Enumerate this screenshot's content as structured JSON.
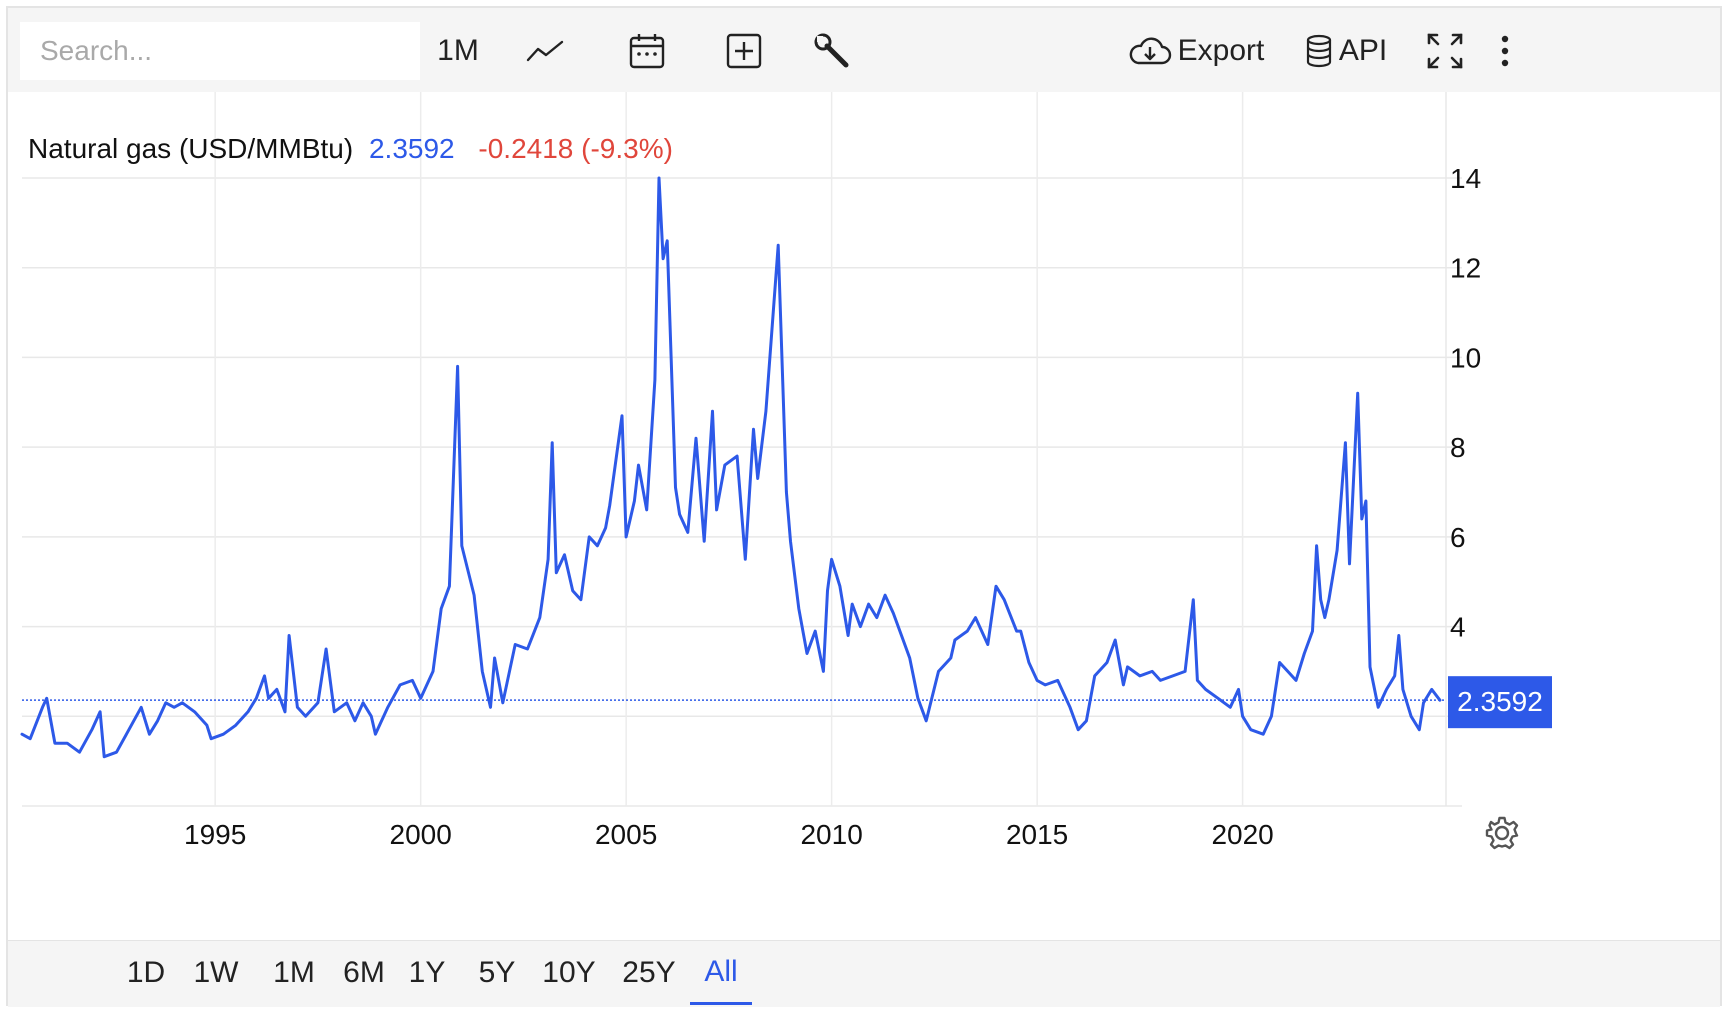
{
  "toolbar": {
    "search_placeholder": "Search...",
    "interval_label": "1M",
    "export_label": "Export",
    "api_label": "API",
    "icons": [
      "line-chart-icon",
      "calendar-icon",
      "add-box-icon",
      "wrench-icon",
      "cloud-download-icon",
      "database-icon",
      "fullscreen-icon",
      "more-vert-icon"
    ]
  },
  "legend": {
    "name": "Natural gas (USD/MMBtu)",
    "value": "2.3592",
    "change": "-0.2418 (-9.3%)",
    "value_color": "#2d59e8",
    "change_color": "#e0463b"
  },
  "ranges": {
    "items": [
      "1D",
      "1W",
      "1M",
      "6M",
      "1Y",
      "5Y",
      "10Y",
      "25Y",
      "All"
    ],
    "active": "All"
  },
  "chart_data": {
    "type": "line",
    "title": "Natural gas (USD/MMBtu)",
    "line_color": "#2d59e8",
    "x_ticks": [
      "1995",
      "2000",
      "2005",
      "2010",
      "2015",
      "2020"
    ],
    "y_ticks": [
      4,
      6,
      8,
      10,
      12,
      14
    ],
    "ylim": [
      0,
      14
    ],
    "xlim": [
      1990.3,
      2024.9
    ],
    "grid": true,
    "last_value_label": "2.3592",
    "last_value": 2.3592,
    "series": [
      {
        "values": [
          [
            1990.3,
            1.6
          ],
          [
            1990.5,
            1.5
          ],
          [
            1990.8,
            2.2
          ],
          [
            1990.9,
            2.4
          ],
          [
            1991.1,
            1.4
          ],
          [
            1991.4,
            1.4
          ],
          [
            1991.7,
            1.2
          ],
          [
            1992.0,
            1.7
          ],
          [
            1992.2,
            2.1
          ],
          [
            1992.3,
            1.1
          ],
          [
            1992.6,
            1.2
          ],
          [
            1992.9,
            1.7
          ],
          [
            1993.2,
            2.2
          ],
          [
            1993.4,
            1.6
          ],
          [
            1993.6,
            1.9
          ],
          [
            1993.8,
            2.3
          ],
          [
            1994.0,
            2.2
          ],
          [
            1994.2,
            2.3
          ],
          [
            1994.5,
            2.1
          ],
          [
            1994.8,
            1.8
          ],
          [
            1994.9,
            1.5
          ],
          [
            1995.2,
            1.6
          ],
          [
            1995.5,
            1.8
          ],
          [
            1995.8,
            2.1
          ],
          [
            1996.0,
            2.4
          ],
          [
            1996.2,
            2.9
          ],
          [
            1996.3,
            2.4
          ],
          [
            1996.5,
            2.6
          ],
          [
            1996.7,
            2.1
          ],
          [
            1996.8,
            3.8
          ],
          [
            1997.0,
            2.2
          ],
          [
            1997.2,
            2.0
          ],
          [
            1997.5,
            2.3
          ],
          [
            1997.7,
            3.5
          ],
          [
            1997.9,
            2.1
          ],
          [
            1998.2,
            2.3
          ],
          [
            1998.4,
            1.9
          ],
          [
            1998.6,
            2.3
          ],
          [
            1998.8,
            2.0
          ],
          [
            1998.9,
            1.6
          ],
          [
            1999.2,
            2.2
          ],
          [
            1999.5,
            2.7
          ],
          [
            1999.8,
            2.8
          ],
          [
            2000.0,
            2.4
          ],
          [
            2000.3,
            3.0
          ],
          [
            2000.5,
            4.4
          ],
          [
            2000.7,
            4.9
          ],
          [
            2000.9,
            9.8
          ],
          [
            2001.0,
            5.8
          ],
          [
            2001.3,
            4.7
          ],
          [
            2001.5,
            3.0
          ],
          [
            2001.7,
            2.2
          ],
          [
            2001.8,
            3.3
          ],
          [
            2002.0,
            2.3
          ],
          [
            2002.3,
            3.6
          ],
          [
            2002.6,
            3.5
          ],
          [
            2002.9,
            4.2
          ],
          [
            2003.1,
            5.5
          ],
          [
            2003.2,
            8.1
          ],
          [
            2003.3,
            5.2
          ],
          [
            2003.5,
            5.6
          ],
          [
            2003.7,
            4.8
          ],
          [
            2003.9,
            4.6
          ],
          [
            2004.1,
            6.0
          ],
          [
            2004.3,
            5.8
          ],
          [
            2004.5,
            6.2
          ],
          [
            2004.6,
            6.7
          ],
          [
            2004.9,
            8.7
          ],
          [
            2005.0,
            6.0
          ],
          [
            2005.2,
            6.8
          ],
          [
            2005.3,
            7.6
          ],
          [
            2005.5,
            6.6
          ],
          [
            2005.7,
            9.5
          ],
          [
            2005.8,
            14.0
          ],
          [
            2005.9,
            12.2
          ],
          [
            2006.0,
            12.6
          ],
          [
            2006.2,
            7.1
          ],
          [
            2006.3,
            6.5
          ],
          [
            2006.5,
            6.1
          ],
          [
            2006.7,
            8.2
          ],
          [
            2006.9,
            5.9
          ],
          [
            2007.1,
            8.8
          ],
          [
            2007.2,
            6.6
          ],
          [
            2007.4,
            7.6
          ],
          [
            2007.7,
            7.8
          ],
          [
            2007.9,
            5.5
          ],
          [
            2008.1,
            8.4
          ],
          [
            2008.2,
            7.3
          ],
          [
            2008.4,
            8.8
          ],
          [
            2008.7,
            12.5
          ],
          [
            2008.9,
            7.0
          ],
          [
            2009.0,
            5.9
          ],
          [
            2009.2,
            4.4
          ],
          [
            2009.4,
            3.4
          ],
          [
            2009.6,
            3.9
          ],
          [
            2009.8,
            3.0
          ],
          [
            2009.9,
            4.8
          ],
          [
            2010.0,
            5.5
          ],
          [
            2010.2,
            4.9
          ],
          [
            2010.4,
            3.8
          ],
          [
            2010.5,
            4.5
          ],
          [
            2010.7,
            4.0
          ],
          [
            2010.9,
            4.5
          ],
          [
            2011.1,
            4.2
          ],
          [
            2011.3,
            4.7
          ],
          [
            2011.5,
            4.3
          ],
          [
            2011.7,
            3.8
          ],
          [
            2011.9,
            3.3
          ],
          [
            2012.1,
            2.4
          ],
          [
            2012.3,
            1.9
          ],
          [
            2012.6,
            3.0
          ],
          [
            2012.9,
            3.3
          ],
          [
            2013.0,
            3.7
          ],
          [
            2013.3,
            3.9
          ],
          [
            2013.5,
            4.2
          ],
          [
            2013.8,
            3.6
          ],
          [
            2014.0,
            4.9
          ],
          [
            2014.2,
            4.6
          ],
          [
            2014.5,
            3.9
          ],
          [
            2014.6,
            3.9
          ],
          [
            2014.8,
            3.2
          ],
          [
            2015.0,
            2.8
          ],
          [
            2015.2,
            2.7
          ],
          [
            2015.5,
            2.8
          ],
          [
            2015.8,
            2.2
          ],
          [
            2016.0,
            1.7
          ],
          [
            2016.2,
            1.9
          ],
          [
            2016.4,
            2.9
          ],
          [
            2016.7,
            3.2
          ],
          [
            2016.9,
            3.7
          ],
          [
            2017.1,
            2.7
          ],
          [
            2017.2,
            3.1
          ],
          [
            2017.5,
            2.9
          ],
          [
            2017.8,
            3.0
          ],
          [
            2018.0,
            2.8
          ],
          [
            2018.3,
            2.9
          ],
          [
            2018.6,
            3.0
          ],
          [
            2018.8,
            4.6
          ],
          [
            2018.9,
            2.8
          ],
          [
            2019.1,
            2.6
          ],
          [
            2019.4,
            2.4
          ],
          [
            2019.7,
            2.2
          ],
          [
            2019.9,
            2.6
          ],
          [
            2020.0,
            2.0
          ],
          [
            2020.2,
            1.7
          ],
          [
            2020.5,
            1.6
          ],
          [
            2020.7,
            2.0
          ],
          [
            2020.9,
            3.2
          ],
          [
            2021.1,
            3.0
          ],
          [
            2021.3,
            2.8
          ],
          [
            2021.5,
            3.4
          ],
          [
            2021.7,
            3.9
          ],
          [
            2021.8,
            5.8
          ],
          [
            2021.9,
            4.6
          ],
          [
            2022.0,
            4.2
          ],
          [
            2022.1,
            4.6
          ],
          [
            2022.3,
            5.7
          ],
          [
            2022.5,
            8.1
          ],
          [
            2022.6,
            5.4
          ],
          [
            2022.8,
            9.2
          ],
          [
            2022.9,
            6.4
          ],
          [
            2023.0,
            6.8
          ],
          [
            2023.1,
            3.1
          ],
          [
            2023.3,
            2.2
          ],
          [
            2023.5,
            2.6
          ],
          [
            2023.7,
            2.9
          ],
          [
            2023.8,
            3.8
          ],
          [
            2023.9,
            2.6
          ],
          [
            2024.1,
            2.0
          ],
          [
            2024.3,
            1.7
          ],
          [
            2024.4,
            2.3
          ],
          [
            2024.6,
            2.6
          ],
          [
            2024.8,
            2.3592
          ]
        ]
      }
    ]
  }
}
